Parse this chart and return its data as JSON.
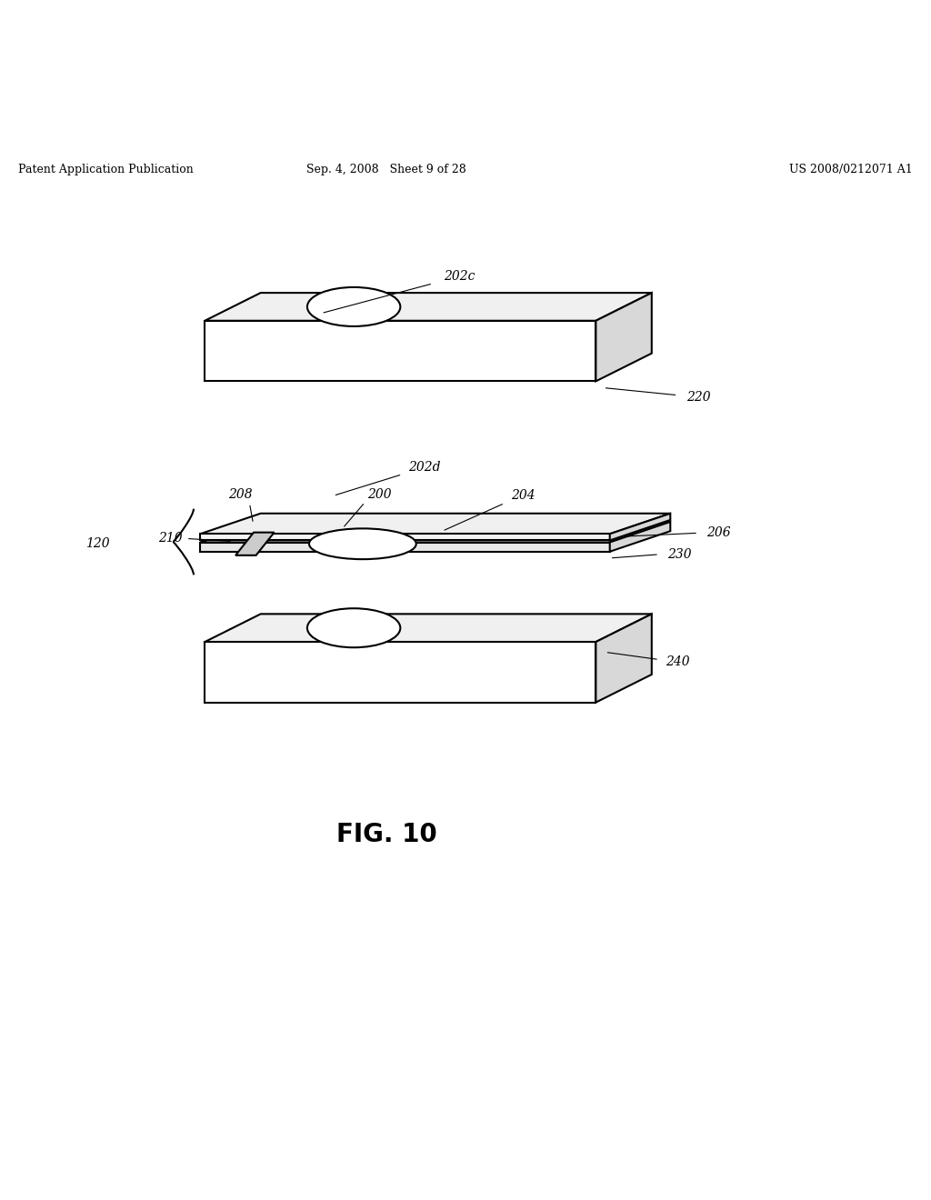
{
  "bg_color": "#ffffff",
  "header_left": "Patent Application Publication",
  "header_mid": "Sep. 4, 2008   Sheet 9 of 28",
  "header_right": "US 2008/0212071 A1",
  "fig_label": "FIG. 10"
}
